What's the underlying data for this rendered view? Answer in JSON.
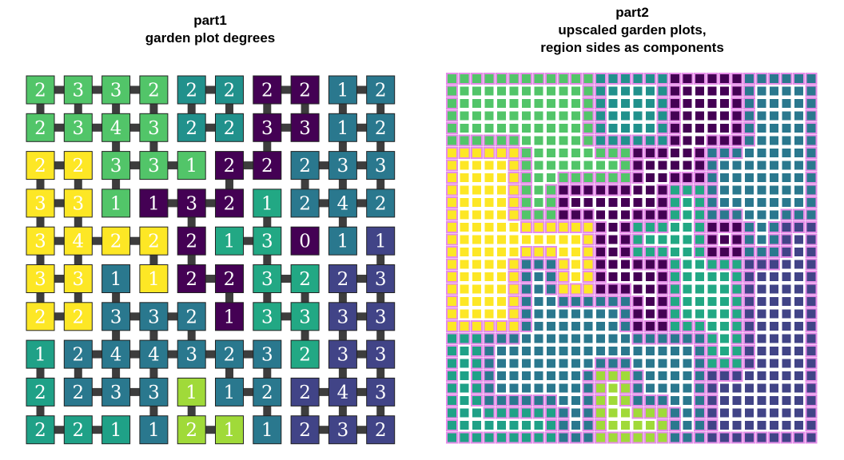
{
  "part1": {
    "title": "part1",
    "subtitle": "garden plot degrees",
    "degrees": [
      [
        2,
        3,
        3,
        2,
        2,
        2,
        2,
        2,
        1,
        2
      ],
      [
        2,
        3,
        4,
        3,
        2,
        2,
        3,
        3,
        1,
        2
      ],
      [
        2,
        2,
        3,
        3,
        1,
        2,
        2,
        2,
        3,
        3
      ],
      [
        3,
        3,
        1,
        1,
        3,
        2,
        1,
        2,
        4,
        2
      ],
      [
        3,
        4,
        2,
        2,
        2,
        1,
        3,
        0,
        1,
        1
      ],
      [
        3,
        3,
        1,
        1,
        2,
        2,
        3,
        2,
        2,
        3
      ],
      [
        2,
        2,
        3,
        3,
        2,
        1,
        3,
        3,
        3,
        3
      ],
      [
        1,
        2,
        4,
        4,
        3,
        2,
        3,
        2,
        3,
        3
      ],
      [
        2,
        2,
        3,
        3,
        1,
        1,
        2,
        2,
        4,
        3
      ],
      [
        2,
        2,
        1,
        1,
        2,
        1,
        1,
        2,
        3,
        2
      ]
    ],
    "regions": [
      [
        "G",
        "G",
        "G",
        "G",
        "T",
        "T",
        "P",
        "P",
        "B",
        "B"
      ],
      [
        "G",
        "G",
        "G",
        "G",
        "T",
        "T",
        "P",
        "P",
        "B",
        "B"
      ],
      [
        "Y",
        "Y",
        "G",
        "G",
        "G",
        "P",
        "P",
        "B",
        "B",
        "B"
      ],
      [
        "Y",
        "Y",
        "G",
        "P",
        "P",
        "P",
        "C",
        "B",
        "B",
        "B"
      ],
      [
        "Y",
        "Y",
        "Y",
        "Y",
        "P",
        "C",
        "C",
        "P",
        "B",
        "I"
      ],
      [
        "Y",
        "Y",
        "B",
        "Y",
        "P",
        "P",
        "C",
        "C",
        "I",
        "I"
      ],
      [
        "Y",
        "Y",
        "B",
        "B",
        "B",
        "P",
        "C",
        "C",
        "I",
        "I"
      ],
      [
        "E",
        "B",
        "B",
        "B",
        "B",
        "B",
        "B",
        "C",
        "I",
        "I"
      ],
      [
        "E",
        "B",
        "B",
        "B",
        "L",
        "B",
        "B",
        "I",
        "I",
        "I"
      ],
      [
        "E",
        "E",
        "E",
        "B",
        "L",
        "L",
        "B",
        "I",
        "I",
        "I"
      ]
    ]
  },
  "part2": {
    "title": "part2",
    "subtitle_lines": [
      "upscaled garden plots,",
      "region sides as components"
    ]
  },
  "colors": {
    "G": "#52c569",
    "T": "#21918c",
    "P": "#440154",
    "B": "#2a788e",
    "Y": "#fde725",
    "C": "#22a884",
    "I": "#414487",
    "E": "#1fa187",
    "L": "#a0da39",
    "connector": "#3d3d3d",
    "border": "#222222",
    "side_highlight": "#e58de8"
  }
}
